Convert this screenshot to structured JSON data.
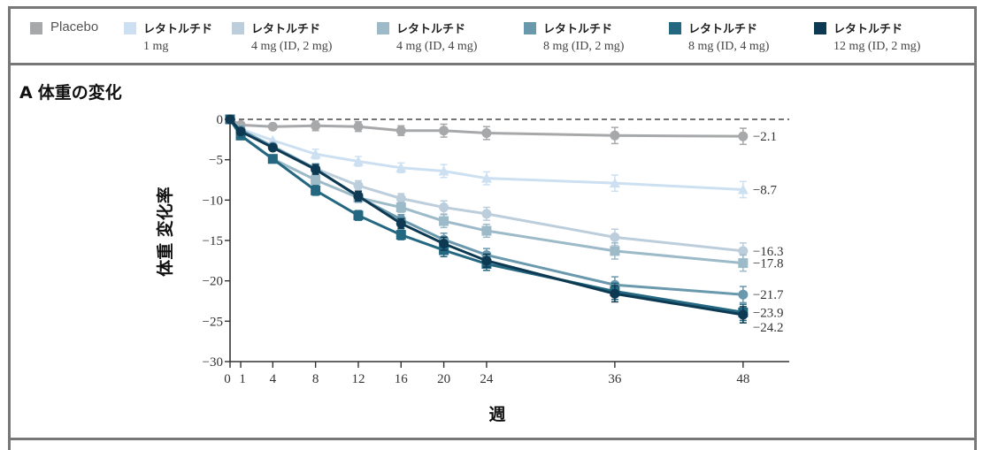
{
  "legend": {
    "items": [
      {
        "name": "Placebo",
        "dose": "",
        "color": "#a7a8aa"
      },
      {
        "name": "レタトルチド",
        "dose": "1 mg",
        "color": "#cce0f2"
      },
      {
        "name": "レタトルチド",
        "dose": "4 mg (ID, 2 mg)",
        "color": "#bccddb"
      },
      {
        "name": "レタトルチド",
        "dose": "4 mg (ID, 4 mg)",
        "color": "#9dbac9"
      },
      {
        "name": "レタトルチド",
        "dose": "8 mg (ID, 2 mg)",
        "color": "#6a98ad"
      },
      {
        "name": "レタトルチド",
        "dose": "8 mg (ID, 4 mg)",
        "color": "#236880"
      },
      {
        "name": "レタトルチド",
        "dose": "12 mg (ID, 2 mg)",
        "color": "#0d3a52"
      }
    ]
  },
  "panel": {
    "letter": "A",
    "title": "体重の変化"
  },
  "chart_data": {
    "type": "line",
    "title": "体重の変化",
    "xlabel": "週",
    "ylabel": "体重 変化率",
    "x": [
      0,
      1,
      4,
      8,
      12,
      16,
      20,
      24,
      36,
      48
    ],
    "xticks": [
      "0",
      "1",
      "4",
      "8",
      "12",
      "16",
      "20",
      "24",
      "36",
      "48"
    ],
    "xlim": [
      0,
      52
    ],
    "ylim": [
      -30,
      0
    ],
    "yticks": [
      "0",
      "−5",
      "−10",
      "−15",
      "−20",
      "−25",
      "−30"
    ],
    "ytick_values": [
      0,
      -5,
      -10,
      -15,
      -20,
      -25,
      -30
    ],
    "reference_line": 0,
    "legend_position": "top",
    "series": [
      {
        "name": "Placebo",
        "color": "#a7a8aa",
        "marker": "circle",
        "values": [
          0,
          -0.7,
          -0.9,
          -0.8,
          -0.9,
          -1.4,
          -1.4,
          -1.7,
          -2.0,
          -2.1
        ],
        "end_label": "−2.1"
      },
      {
        "name": "レタトルチド 1 mg",
        "color": "#cce0f2",
        "marker": "triangle",
        "values": [
          0,
          -1.2,
          -2.6,
          -4.3,
          -5.2,
          -6.0,
          -6.4,
          -7.3,
          -7.9,
          -8.7
        ],
        "end_label": "−8.7"
      },
      {
        "name": "レタトルチド 4 mg (ID, 2 mg)",
        "color": "#bccddb",
        "marker": "circle",
        "values": [
          0,
          -1.3,
          -3.3,
          -6.1,
          -8.2,
          -9.8,
          -10.9,
          -11.7,
          -14.6,
          -16.3
        ],
        "end_label": "−16.3"
      },
      {
        "name": "レタトルチド 4 mg (ID, 4 mg)",
        "color": "#9dbac9",
        "marker": "square",
        "values": [
          0,
          -2.0,
          -4.9,
          -7.5,
          -9.7,
          -10.9,
          -12.6,
          -13.8,
          -16.3,
          -17.8
        ],
        "end_label": "−17.8"
      },
      {
        "name": "レタトルチド 8 mg (ID, 2 mg)",
        "color": "#6a98ad",
        "marker": "circle",
        "values": [
          0,
          -1.3,
          -3.4,
          -6.1,
          -9.6,
          -12.4,
          -14.9,
          -16.8,
          -20.5,
          -21.7
        ],
        "end_label": "−21.7"
      },
      {
        "name": "レタトルチド 8 mg (ID, 4 mg)",
        "color": "#236880",
        "marker": "square",
        "values": [
          0,
          -2.0,
          -4.9,
          -8.8,
          -11.9,
          -14.3,
          -16.2,
          -17.9,
          -21.3,
          -23.9
        ],
        "end_label": "−23.9"
      },
      {
        "name": "レタトルチド 12 mg (ID, 2 mg)",
        "color": "#0d3a52",
        "marker": "circle",
        "values": [
          0,
          -1.5,
          -3.5,
          -6.2,
          -9.5,
          -12.9,
          -15.4,
          -17.5,
          -21.6,
          -24.2
        ],
        "end_label": "−24.2"
      }
    ]
  }
}
